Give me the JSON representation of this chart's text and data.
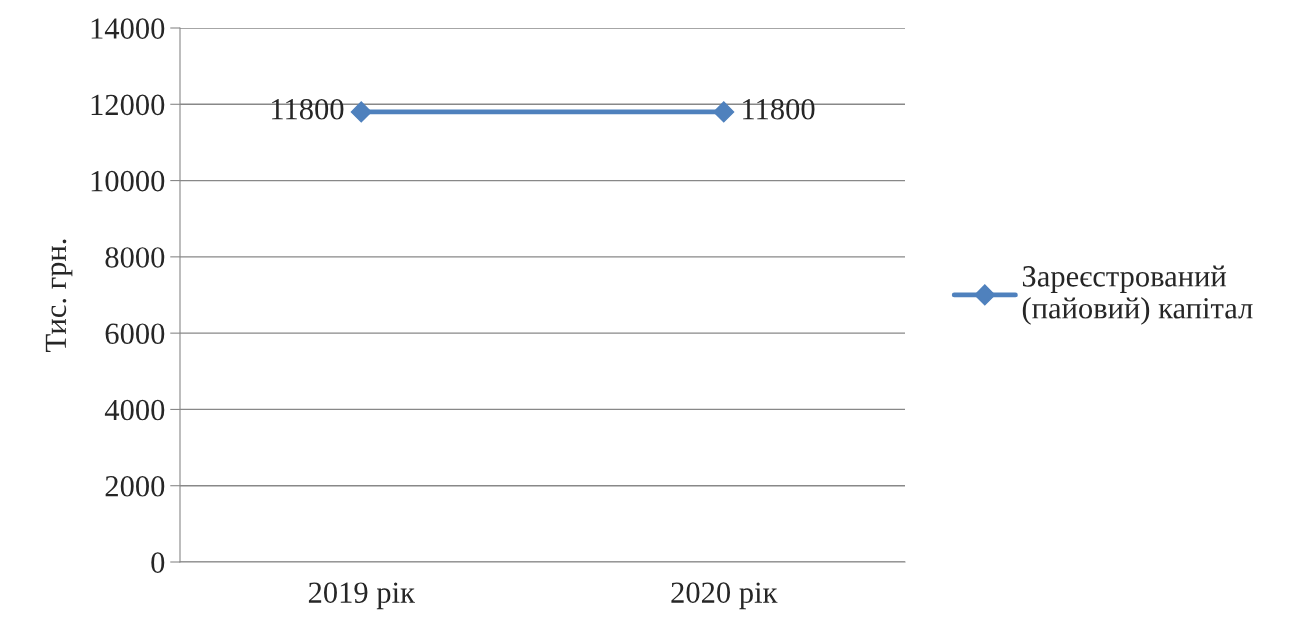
{
  "chart_data": {
    "type": "line",
    "ylabel": "Тис. грн.",
    "categories": [
      "2019 рік",
      "2020 рік"
    ],
    "series": [
      {
        "name": "Зареєстрований\n(пайовий) капітал",
        "color": "#4f81bd",
        "values": [
          11800,
          11800
        ]
      }
    ],
    "ylim": [
      0,
      14000
    ],
    "yticks": [
      0,
      2000,
      4000,
      6000,
      8000,
      10000,
      12000,
      14000
    ],
    "grid": "y",
    "legend": "right",
    "marker": "diamond",
    "line_style": "solid",
    "data_labels": true
  }
}
